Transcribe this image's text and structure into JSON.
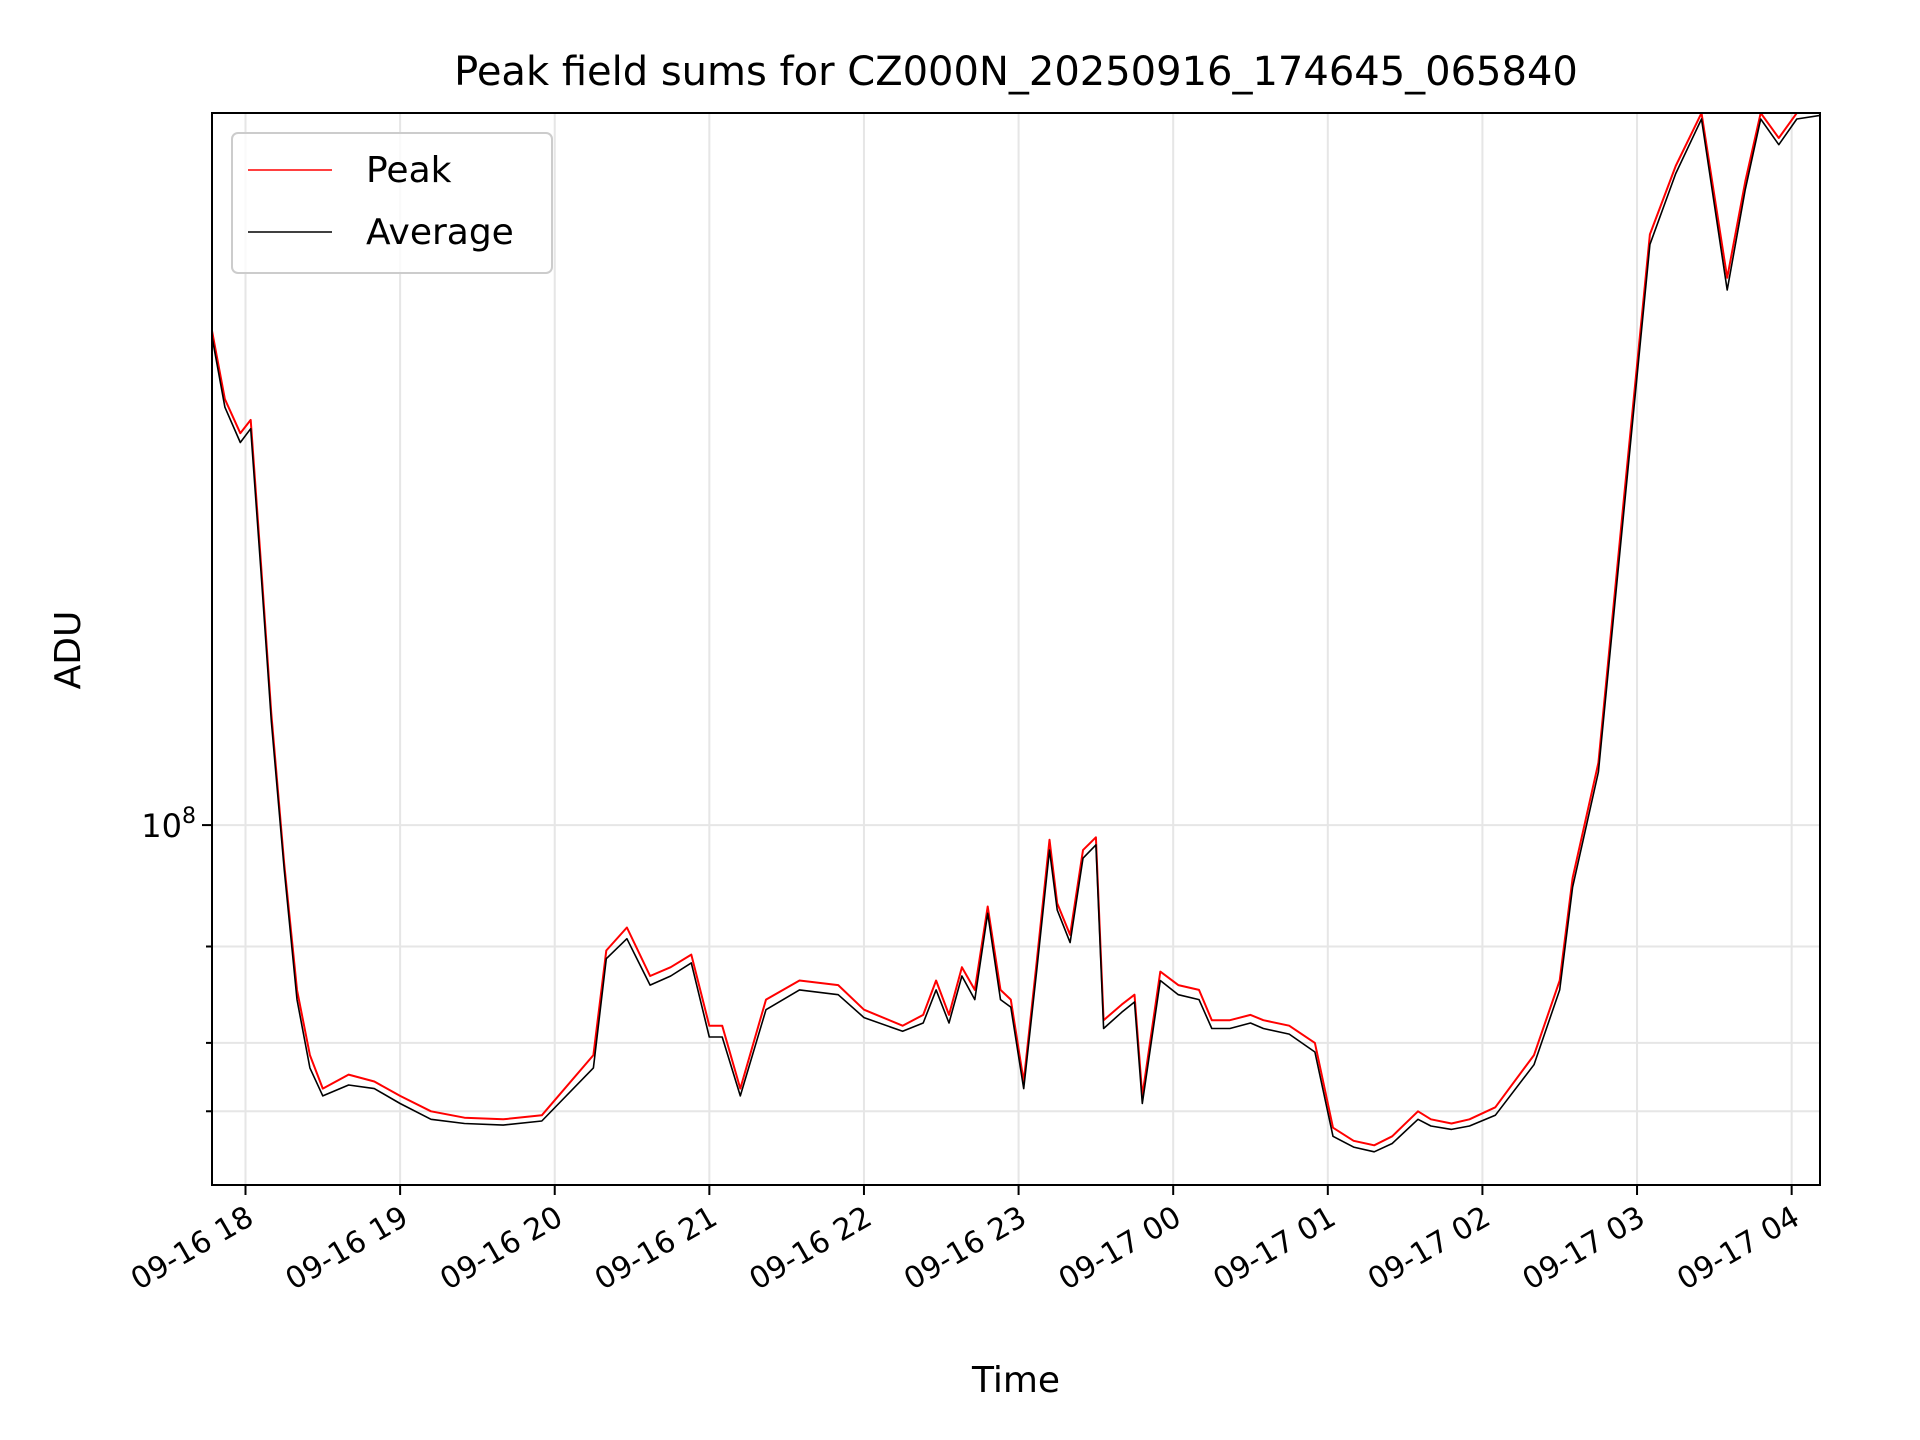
{
  "chart_data": {
    "type": "line",
    "title": "Peak field sums for CZ000N_20250916_174645_065840",
    "xlabel": "Time",
    "ylabel": "ADU",
    "yscale": "log",
    "ylim": [
      22000000,
      2000000000
    ],
    "xlim": [
      "2025-09-16 17:47",
      "2025-09-17 04:11"
    ],
    "grid": true,
    "legend_position": "upper-left",
    "x_ticks": [
      "09-16 18",
      "09-16 19",
      "09-16 20",
      "09-16 21",
      "09-16 22",
      "09-16 23",
      "09-17 00",
      "09-17 01",
      "09-17 02",
      "09-17 03",
      "09-17 04"
    ],
    "y_tick_label": {
      "base": "10",
      "exponent": "8"
    },
    "y_tick_values": [
      30000000,
      40000000,
      60000000,
      100000000
    ],
    "series": [
      {
        "name": "Peak",
        "color": "#ff0000",
        "x": [
          "2025-09-16 17:47",
          "2025-09-16 17:52",
          "2025-09-16 17:58",
          "2025-09-16 18:02",
          "2025-09-16 18:06",
          "2025-09-16 18:10",
          "2025-09-16 18:15",
          "2025-09-16 18:20",
          "2025-09-16 18:25",
          "2025-09-16 18:30",
          "2025-09-16 18:40",
          "2025-09-16 18:50",
          "2025-09-16 19:00",
          "2025-09-16 19:12",
          "2025-09-16 19:25",
          "2025-09-16 19:40",
          "2025-09-16 19:55",
          "2025-09-16 20:15",
          "2025-09-16 20:20",
          "2025-09-16 20:28",
          "2025-09-16 20:37",
          "2025-09-16 20:45",
          "2025-09-16 20:53",
          "2025-09-16 21:00",
          "2025-09-16 21:05",
          "2025-09-16 21:12",
          "2025-09-16 21:22",
          "2025-09-16 21:35",
          "2025-09-16 21:50",
          "2025-09-16 22:00",
          "2025-09-16 22:15",
          "2025-09-16 22:23",
          "2025-09-16 22:28",
          "2025-09-16 22:33",
          "2025-09-16 22:38",
          "2025-09-16 22:43",
          "2025-09-16 22:48",
          "2025-09-16 22:53",
          "2025-09-16 22:57",
          "2025-09-16 23:02",
          "2025-09-16 23:07",
          "2025-09-16 23:12",
          "2025-09-16 23:15",
          "2025-09-16 23:20",
          "2025-09-16 23:25",
          "2025-09-16 23:30",
          "2025-09-16 23:33",
          "2025-09-16 23:40",
          "2025-09-16 23:45",
          "2025-09-16 23:48",
          "2025-09-16 23:55",
          "2025-09-17 00:02",
          "2025-09-17 00:10",
          "2025-09-17 00:15",
          "2025-09-17 00:22",
          "2025-09-17 00:30",
          "2025-09-17 00:35",
          "2025-09-17 00:45",
          "2025-09-17 00:55",
          "2025-09-17 01:02",
          "2025-09-17 01:10",
          "2025-09-17 01:18",
          "2025-09-17 01:25",
          "2025-09-17 01:35",
          "2025-09-17 01:40",
          "2025-09-17 01:48",
          "2025-09-17 01:55",
          "2025-09-17 02:05",
          "2025-09-17 02:20",
          "2025-09-17 02:30",
          "2025-09-17 02:35",
          "2025-09-17 02:45",
          "2025-09-17 02:55",
          "2025-09-17 03:05",
          "2025-09-17 03:15",
          "2025-09-17 03:25",
          "2025-09-17 03:35",
          "2025-09-17 03:42",
          "2025-09-17 03:48",
          "2025-09-17 03:55",
          "2025-09-17 04:02",
          "2025-09-17 04:11"
        ],
        "y": [
          800000000,
          600000000,
          520000000,
          550000000,
          300000000,
          160000000,
          85000000,
          50000000,
          38000000,
          33000000,
          35000000,
          34000000,
          32000000,
          30000000,
          29200000,
          29000000,
          29500000,
          38000000,
          59000000,
          65000000,
          53000000,
          55000000,
          58000000,
          43000000,
          43000000,
          33000000,
          48000000,
          52000000,
          51000000,
          46000000,
          43000000,
          45000000,
          52000000,
          45000000,
          55000000,
          50000000,
          71000000,
          50000000,
          48000000,
          34000000,
          56000000,
          94000000,
          72000000,
          63000000,
          90000000,
          95000000,
          44000000,
          47000000,
          49000000,
          32000000,
          54000000,
          51000000,
          50000000,
          44000000,
          44000000,
          45000000,
          44000000,
          43000000,
          40000000,
          28000000,
          26500000,
          26000000,
          27000000,
          30000000,
          29000000,
          28500000,
          29000000,
          30500000,
          38000000,
          52000000,
          80000000,
          130000000,
          400000000,
          1200000000,
          1600000000,
          2000000000,
          1000000000,
          1500000000,
          2000000000,
          1800000000,
          2000000000,
          2000000000
        ],
        "note_values_are_approximate": true
      },
      {
        "name": "Average",
        "color": "#000000",
        "x": [
          "2025-09-16 17:47",
          "2025-09-16 17:52",
          "2025-09-16 17:58",
          "2025-09-16 18:02",
          "2025-09-16 18:06",
          "2025-09-16 18:10",
          "2025-09-16 18:15",
          "2025-09-16 18:20",
          "2025-09-16 18:25",
          "2025-09-16 18:30",
          "2025-09-16 18:40",
          "2025-09-16 18:50",
          "2025-09-16 19:00",
          "2025-09-16 19:12",
          "2025-09-16 19:25",
          "2025-09-16 19:40",
          "2025-09-16 19:55",
          "2025-09-16 20:15",
          "2025-09-16 20:20",
          "2025-09-16 20:28",
          "2025-09-16 20:37",
          "2025-09-16 20:45",
          "2025-09-16 20:53",
          "2025-09-16 21:00",
          "2025-09-16 21:05",
          "2025-09-16 21:12",
          "2025-09-16 21:22",
          "2025-09-16 21:35",
          "2025-09-16 21:50",
          "2025-09-16 22:00",
          "2025-09-16 22:15",
          "2025-09-16 22:23",
          "2025-09-16 22:28",
          "2025-09-16 22:33",
          "2025-09-16 22:38",
          "2025-09-16 22:43",
          "2025-09-16 22:48",
          "2025-09-16 22:53",
          "2025-09-16 22:57",
          "2025-09-16 23:02",
          "2025-09-16 23:07",
          "2025-09-16 23:12",
          "2025-09-16 23:15",
          "2025-09-16 23:20",
          "2025-09-16 23:25",
          "2025-09-16 23:30",
          "2025-09-16 23:33",
          "2025-09-16 23:40",
          "2025-09-16 23:45",
          "2025-09-16 23:48",
          "2025-09-16 23:55",
          "2025-09-17 00:02",
          "2025-09-17 00:10",
          "2025-09-17 00:15",
          "2025-09-17 00:22",
          "2025-09-17 00:30",
          "2025-09-17 00:35",
          "2025-09-17 00:45",
          "2025-09-17 00:55",
          "2025-09-17 01:02",
          "2025-09-17 01:10",
          "2025-09-17 01:18",
          "2025-09-17 01:25",
          "2025-09-17 01:35",
          "2025-09-17 01:40",
          "2025-09-17 01:48",
          "2025-09-17 01:55",
          "2025-09-17 02:05",
          "2025-09-17 02:20",
          "2025-09-17 02:30",
          "2025-09-17 02:35",
          "2025-09-17 02:45",
          "2025-09-17 02:55",
          "2025-09-17 03:05",
          "2025-09-17 03:15",
          "2025-09-17 03:25",
          "2025-09-17 03:35",
          "2025-09-17 03:42",
          "2025-09-17 03:48",
          "2025-09-17 03:55",
          "2025-09-17 04:02",
          "2025-09-17 04:11"
        ],
        "y": [
          780000000,
          580000000,
          500000000,
          530000000,
          290000000,
          155000000,
          83000000,
          48000000,
          36000000,
          32000000,
          33500000,
          33000000,
          31000000,
          29000000,
          28500000,
          28300000,
          28800000,
          36000000,
          57000000,
          62000000,
          51000000,
          53000000,
          56000000,
          41000000,
          41000000,
          32000000,
          46000000,
          50000000,
          49000000,
          44500000,
          42000000,
          43500000,
          50000000,
          43500000,
          53000000,
          48000000,
          69000000,
          48000000,
          46500000,
          33000000,
          54000000,
          90000000,
          70000000,
          61000000,
          87000000,
          92000000,
          42500000,
          45500000,
          47500000,
          31000000,
          52000000,
          49000000,
          48000000,
          42500000,
          42500000,
          43500000,
          42500000,
          41500000,
          38500000,
          27000000,
          25800000,
          25300000,
          26200000,
          29000000,
          28200000,
          27800000,
          28200000,
          29500000,
          36500000,
          50000000,
          77000000,
          125000000,
          380000000,
          1150000000,
          1550000000,
          1950000000,
          950000000,
          1450000000,
          1950000000,
          1750000000,
          1950000000,
          1980000000
        ]
      }
    ]
  }
}
